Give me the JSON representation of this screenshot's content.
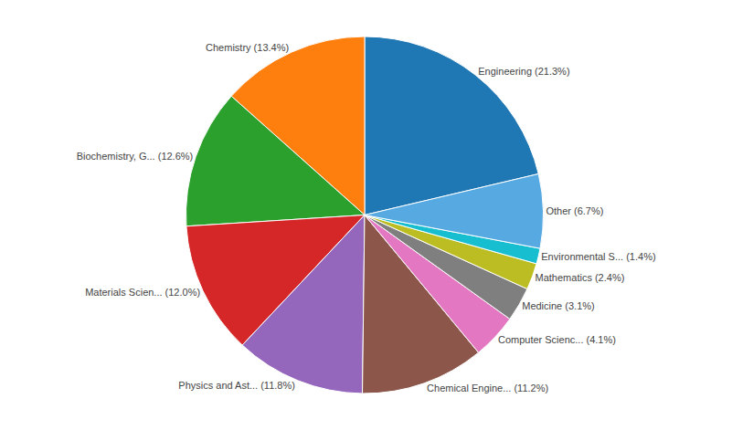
{
  "chart_data": {
    "type": "pie",
    "categories": [
      "Engineering",
      "Chemistry",
      "Biochemistry, G...",
      "Materials Scien...",
      "Physics and Ast...",
      "Chemical Engine...",
      "Computer Scienc...",
      "Medicine",
      "Mathematics",
      "Environmental S...",
      "Other"
    ],
    "values": [
      21.3,
      13.4,
      12.6,
      12.0,
      11.8,
      11.2,
      4.1,
      3.1,
      2.4,
      1.4,
      6.7
    ],
    "value_labels": [
      "Engineering (21.3%)",
      "Chemistry (13.4%)",
      "Biochemistry, G... (12.6%)",
      "Materials Scien... (12.0%)",
      "Physics and Ast... (11.8%)",
      "Chemical Engine... (11.2%)",
      "Computer Scienc... (4.1%)",
      "Medicine (3.1%)",
      "Mathematics (2.4%)",
      "Environmental S... (1.4%)",
      "Other (6.7%)"
    ]
  }
}
